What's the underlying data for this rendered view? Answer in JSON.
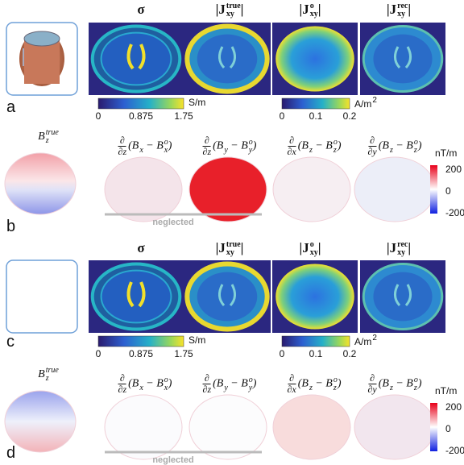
{
  "rows": [
    {
      "letter": "a",
      "headers": [
        [
          {
            "text": "σ"
          }
        ],
        [
          {
            "text": "|J"
          },
          {
            "sub": "xy",
            "sup": "true"
          },
          {
            "text": "|"
          }
        ],
        [
          {
            "text": "|J"
          },
          {
            "sub": "xy",
            "sup": "o"
          },
          {
            "text": "|"
          }
        ],
        [
          {
            "text": "|J"
          },
          {
            "sub": "xy",
            "sup": "rec"
          },
          {
            "text": "|"
          }
        ]
      ],
      "colorbars": [
        {
          "ticks": [
            "0",
            "0.875",
            "1.75"
          ],
          "unit": [
            {
              "text": "S/m"
            }
          ]
        },
        {
          "ticks": [
            "0",
            "0.1",
            "0.2"
          ],
          "unit": [
            {
              "text": "A/m"
            },
            {
              "sup": "2"
            }
          ]
        }
      ]
    },
    {
      "letter": "b",
      "labels": [
        {
          "expr": [
            {
              "text": "B"
            },
            {
              "sub": "z",
              "sup": "true"
            }
          ]
        },
        {
          "num": "∂",
          "den": "∂z",
          "expr": [
            {
              "text": "(B"
            },
            {
              "sub": "x"
            },
            {
              "text": " − B"
            },
            {
              "sub": "x",
              "sup": "o"
            },
            {
              "text": ")"
            }
          ]
        },
        {
          "num": "∂",
          "den": "∂z",
          "expr": [
            {
              "text": "(B"
            },
            {
              "sub": "y"
            },
            {
              "text": " − B"
            },
            {
              "sub": "y",
              "sup": "o"
            },
            {
              "text": ")"
            }
          ]
        },
        {
          "num": "∂",
          "den": "∂x",
          "expr": [
            {
              "text": "(B"
            },
            {
              "sub": "z"
            },
            {
              "text": " − B"
            },
            {
              "sub": "z",
              "sup": "o"
            },
            {
              "text": ")"
            }
          ]
        },
        {
          "num": "∂",
          "den": "∂y",
          "expr": [
            {
              "text": "(B"
            },
            {
              "sub": "z"
            },
            {
              "text": " − B"
            },
            {
              "sub": "z",
              "sup": "o"
            },
            {
              "text": ")"
            }
          ]
        }
      ],
      "colorbar": {
        "unit": "nT/m",
        "ticks": [
          "200",
          "0",
          "-200"
        ]
      },
      "note": "neglected"
    },
    {
      "letter": "c",
      "headers": [
        [
          {
            "text": "σ"
          }
        ],
        [
          {
            "text": "|J"
          },
          {
            "sub": "xy",
            "sup": "true"
          },
          {
            "text": "|"
          }
        ],
        [
          {
            "text": "|J"
          },
          {
            "sub": "xy",
            "sup": "o"
          },
          {
            "text": "|"
          }
        ],
        [
          {
            "text": "|J"
          },
          {
            "sub": "xy",
            "sup": "rec"
          },
          {
            "text": "|"
          }
        ]
      ],
      "colorbars": [
        {
          "ticks": [
            "0",
            "0.875",
            "1.75"
          ],
          "unit": [
            {
              "text": "S/m"
            }
          ]
        },
        {
          "ticks": [
            "0",
            "0.1",
            "0.2"
          ],
          "unit": [
            {
              "text": "A/m"
            },
            {
              "sup": "2"
            }
          ]
        }
      ]
    },
    {
      "letter": "d",
      "labels": [
        {
          "expr": [
            {
              "text": "B"
            },
            {
              "sub": "z",
              "sup": "true"
            }
          ]
        },
        {
          "num": "∂",
          "den": "∂z",
          "expr": [
            {
              "text": "(B"
            },
            {
              "sub": "x"
            },
            {
              "text": " − B"
            },
            {
              "sub": "x",
              "sup": "o"
            },
            {
              "text": ")"
            }
          ]
        },
        {
          "num": "∂",
          "den": "∂z",
          "expr": [
            {
              "text": "(B"
            },
            {
              "sub": "y"
            },
            {
              "text": " − B"
            },
            {
              "sub": "y",
              "sup": "o"
            },
            {
              "text": ")"
            }
          ]
        },
        {
          "num": "∂",
          "den": "∂x",
          "expr": [
            {
              "text": "(B"
            },
            {
              "sub": "z"
            },
            {
              "text": " − B"
            },
            {
              "sub": "z",
              "sup": "o"
            },
            {
              "text": ")"
            }
          ]
        },
        {
          "num": "∂",
          "den": "∂y",
          "expr": [
            {
              "text": "(B"
            },
            {
              "sub": "z"
            },
            {
              "text": " − B"
            },
            {
              "sub": "z",
              "sup": "o"
            },
            {
              "text": ")"
            }
          ]
        }
      ],
      "colorbar": {
        "unit": "nT/m",
        "ticks": [
          "200",
          "0",
          "-200"
        ]
      },
      "note": "neglected"
    }
  ]
}
